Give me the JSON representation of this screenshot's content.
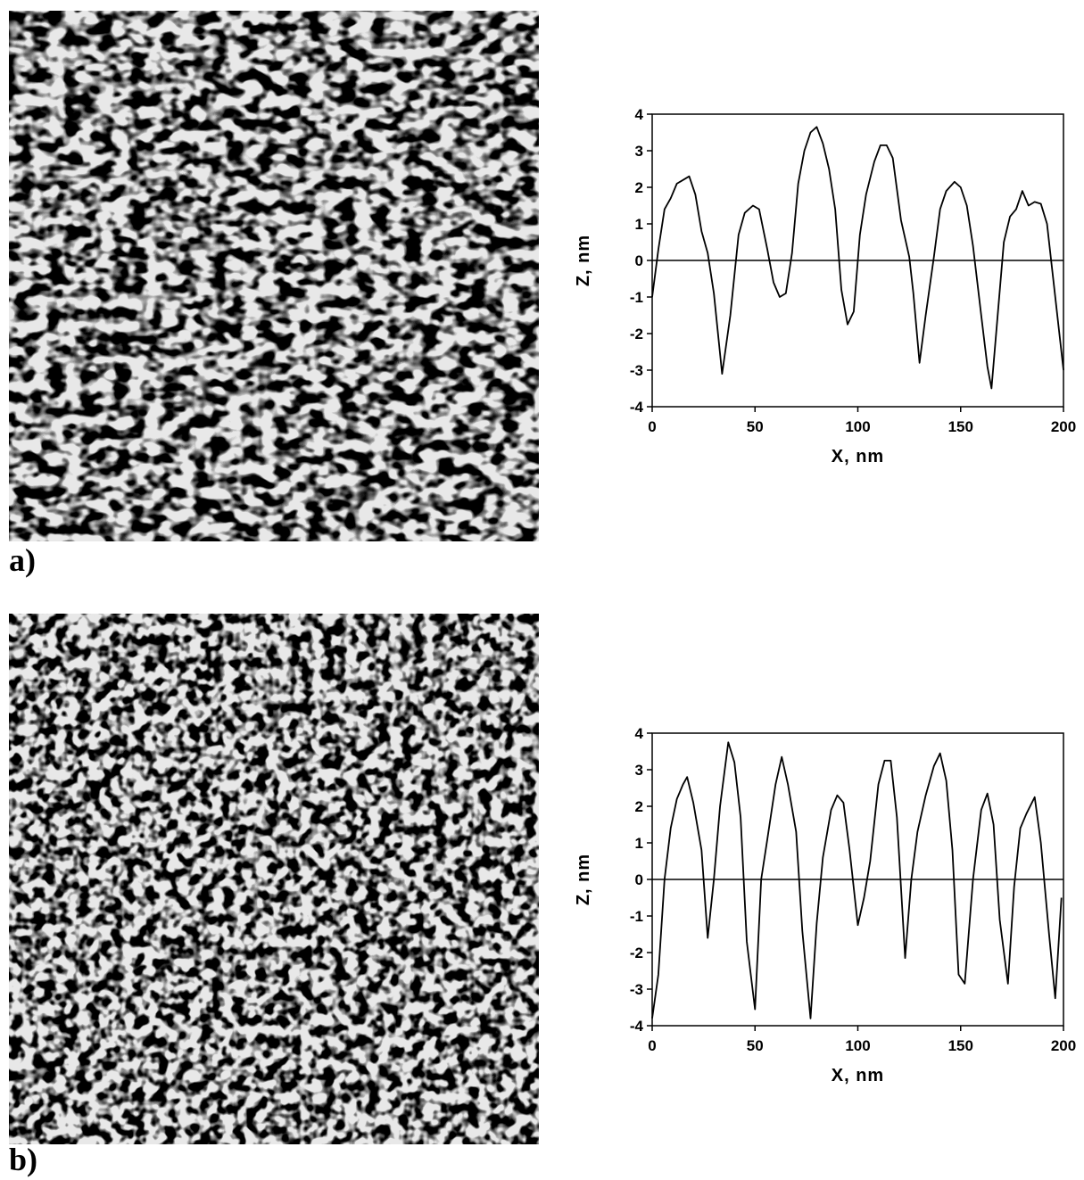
{
  "chart_data": [
    {
      "type": "line",
      "label": "a)",
      "x_label": "X, nm",
      "y_label": "Z, nm",
      "color": "#000000",
      "x": [
        0,
        3,
        6,
        9,
        12,
        18,
        21,
        24,
        27,
        30,
        34,
        38,
        42,
        45,
        49,
        52,
        56,
        59,
        62,
        65,
        68,
        71,
        74,
        77,
        80,
        83,
        86,
        89,
        92,
        95,
        98,
        101,
        104,
        108,
        111,
        114,
        117,
        121,
        125,
        127,
        130,
        133,
        137,
        140,
        143,
        147,
        150,
        153,
        156,
        160,
        163,
        165,
        168,
        171,
        174,
        177,
        180,
        183,
        186,
        189,
        192,
        195,
        200
      ],
      "values": [
        -1.0,
        0.3,
        1.4,
        1.7,
        2.1,
        2.3,
        1.8,
        0.8,
        0.2,
        -0.9,
        -3.1,
        -1.5,
        0.7,
        1.3,
        1.5,
        1.4,
        0.3,
        -0.6,
        -1.0,
        -0.9,
        0.2,
        2.1,
        3.0,
        3.5,
        3.65,
        3.2,
        2.5,
        1.4,
        -0.8,
        -1.75,
        -1.4,
        0.7,
        1.8,
        2.7,
        3.15,
        3.15,
        2.8,
        1.1,
        0.1,
        -0.9,
        -2.8,
        -1.5,
        0.1,
        1.4,
        1.9,
        2.15,
        2.0,
        1.5,
        0.4,
        -1.5,
        -2.9,
        -3.5,
        -1.5,
        0.5,
        1.2,
        1.4,
        1.9,
        1.5,
        1.6,
        1.55,
        1.0,
        -0.5,
        -3.0
      ],
      "xlim": [
        0,
        200
      ],
      "xticks": [
        0,
        50,
        100,
        150,
        200
      ],
      "ylim": [
        -4,
        4
      ],
      "yticks": [
        -4,
        -3,
        -2,
        -1,
        0,
        1,
        2,
        3,
        4
      ],
      "zero_line": 0
    },
    {
      "type": "line",
      "label": "b)",
      "x_label": "X, nm",
      "y_label": "Z, nm",
      "color": "#000000",
      "x": [
        0,
        3,
        6,
        9,
        12,
        15,
        17,
        20,
        24,
        27,
        30,
        33,
        37,
        40,
        43,
        46,
        50,
        53,
        56,
        60,
        63,
        66,
        70,
        73,
        77,
        80,
        83,
        87,
        90,
        93,
        96,
        100,
        103,
        106,
        110,
        113,
        116,
        119,
        123,
        126,
        129,
        133,
        137,
        140,
        143,
        146,
        149,
        152,
        156,
        160,
        163,
        166,
        169,
        173,
        176,
        179,
        182,
        186,
        189,
        193,
        196,
        199
      ],
      "values": [
        -3.8,
        -2.6,
        0.0,
        1.4,
        2.2,
        2.6,
        2.8,
        2.1,
        0.8,
        -1.6,
        0.0,
        2.0,
        3.75,
        3.2,
        1.7,
        -1.7,
        -3.55,
        0.0,
        1.1,
        2.6,
        3.35,
        2.6,
        1.3,
        -1.4,
        -3.8,
        -1.2,
        0.6,
        1.9,
        2.3,
        2.1,
        0.8,
        -1.25,
        -0.5,
        0.5,
        2.6,
        3.25,
        3.25,
        1.7,
        -2.15,
        0.0,
        1.3,
        2.3,
        3.1,
        3.45,
        2.7,
        0.8,
        -2.6,
        -2.85,
        0.0,
        1.9,
        2.35,
        1.5,
        -1.1,
        -2.85,
        -0.2,
        1.4,
        1.8,
        2.25,
        1.0,
        -1.5,
        -3.25,
        -0.5
      ],
      "xlim": [
        0,
        200
      ],
      "xticks": [
        0,
        50,
        100,
        150,
        200
      ],
      "ylim": [
        -4,
        4
      ],
      "yticks": [
        -4,
        -3,
        -2,
        -1,
        0,
        1,
        2,
        3,
        4
      ],
      "zero_line": 0
    }
  ]
}
